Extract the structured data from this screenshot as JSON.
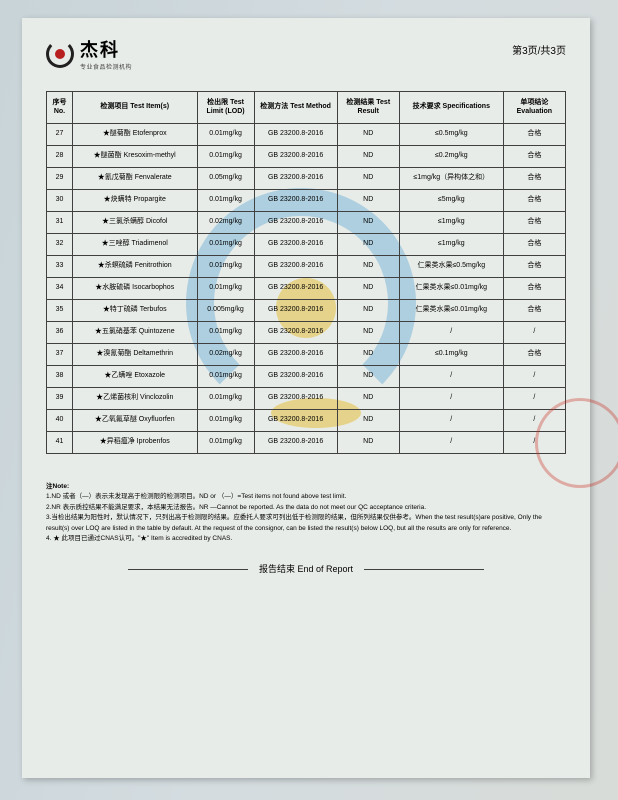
{
  "header": {
    "logo_cn": "杰科",
    "logo_sub": "专业食品检测机构",
    "page_indicator": "第3页/共3页"
  },
  "table": {
    "headers": {
      "no": "序号\nNo.",
      "item": "检测项目\nTest Item(s)",
      "lod": "检出限\nTest Limit\n(LOD)",
      "method": "检测方法\nTest Method",
      "result": "检测结果\nTest Result",
      "spec": "技术要求\nSpecifications",
      "eval": "单项结论\nEvaluation"
    },
    "rows": [
      {
        "no": "27",
        "item": "★醚菊酯 Etofenprox",
        "lod": "0.01mg/kg",
        "method": "GB 23200.8-2016",
        "result": "ND",
        "spec": "≤0.5mg/kg",
        "eval": "合格"
      },
      {
        "no": "28",
        "item": "★醚菌酯 Kresoxim-methyl",
        "lod": "0.01mg/kg",
        "method": "GB 23200.8-2016",
        "result": "ND",
        "spec": "≤0.2mg/kg",
        "eval": "合格"
      },
      {
        "no": "29",
        "item": "★氰戊菊酯 Fenvalerate",
        "lod": "0.05mg/kg",
        "method": "GB 23200.8-2016",
        "result": "ND",
        "spec": "≤1mg/kg（异构体之和）",
        "eval": "合格"
      },
      {
        "no": "30",
        "item": "★炔螨特 Propargite",
        "lod": "0.01mg/kg",
        "method": "GB 23200.8-2016",
        "result": "ND",
        "spec": "≤5mg/kg",
        "eval": "合格"
      },
      {
        "no": "31",
        "item": "★三氯杀螨醇 Dicofol",
        "lod": "0.02mg/kg",
        "method": "GB 23200.8-2016",
        "result": "ND",
        "spec": "≤1mg/kg",
        "eval": "合格"
      },
      {
        "no": "32",
        "item": "★三唑醇 Triadimenol",
        "lod": "0.01mg/kg",
        "method": "GB 23200.8-2016",
        "result": "ND",
        "spec": "≤1mg/kg",
        "eval": "合格"
      },
      {
        "no": "33",
        "item": "★杀螟硫磷 Fenitrothion",
        "lod": "0.01mg/kg",
        "method": "GB 23200.8-2016",
        "result": "ND",
        "spec": "仁果类水果≤0.5mg/kg",
        "eval": "合格"
      },
      {
        "no": "34",
        "item": "★水胺硫磷 Isocarbophos",
        "lod": "0.01mg/kg",
        "method": "GB 23200.8-2016",
        "result": "ND",
        "spec": "仁果类水果≤0.01mg/kg",
        "eval": "合格"
      },
      {
        "no": "35",
        "item": "★特丁硫磷 Terbufos",
        "lod": "0.005mg/kg",
        "method": "GB 23200.8-2016",
        "result": "ND",
        "spec": "仁果类水果≤0.01mg/kg",
        "eval": "合格"
      },
      {
        "no": "36",
        "item": "★五氯硝基苯 Quintozene",
        "lod": "0.01mg/kg",
        "method": "GB 23200.8-2016",
        "result": "ND",
        "spec": "/",
        "eval": "/"
      },
      {
        "no": "37",
        "item": "★溴氰菊酯 Deltamethrin",
        "lod": "0.02mg/kg",
        "method": "GB 23200.8-2016",
        "result": "ND",
        "spec": "≤0.1mg/kg",
        "eval": "合格"
      },
      {
        "no": "38",
        "item": "★乙螨唑 Etoxazole",
        "lod": "0.01mg/kg",
        "method": "GB 23200.8-2016",
        "result": "ND",
        "spec": "/",
        "eval": "/"
      },
      {
        "no": "39",
        "item": "★乙烯菌核利 Vinclozolin",
        "lod": "0.01mg/kg",
        "method": "GB 23200.8-2016",
        "result": "ND",
        "spec": "/",
        "eval": "/"
      },
      {
        "no": "40",
        "item": "★乙氧氟草醚 Oxyfluorfen",
        "lod": "0.01mg/kg",
        "method": "GB 23200.8-2016",
        "result": "ND",
        "spec": "/",
        "eval": "/"
      },
      {
        "no": "41",
        "item": "★异稻瘟净 Iprobenfos",
        "lod": "0.01mg/kg",
        "method": "GB 23200.8-2016",
        "result": "ND",
        "spec": "/",
        "eval": "/"
      }
    ]
  },
  "notes": {
    "title": "注Note:",
    "lines": [
      "1.ND 或者（—）表示未发现高于检测限的检测项目。ND or （—）=Test items not found above test limit.",
      "2.NR 表示质控结果不能满足要求，本结果无法报告。NR  —Cannot be reported. As the data do not meet our QC acceptance criteria.",
      "3.当检出结果为阳性时，默认情况下，只列出高于检测限的结果。应委托人要求可列出低于检测限的结果，但所列结果仅供参考。When the test result(s)are positive, Only the result(s) over LOQ are listed in the table by default. At the request of the consignor, can be listed the result(s) below LOQ, but all  the results are only for reference.",
      "4. ★ 此项目已通过CNAS认可。\"★\" Item is accredited by CNAS."
    ]
  },
  "end_report": "报告结束 End of Report",
  "colors": {
    "border": "#404040",
    "bg_paper": "#e8ece8",
    "stamp": "rgba(200,50,40,0.5)",
    "logo_blue": "#7fb8d8",
    "logo_yellow": "#e6c040"
  }
}
